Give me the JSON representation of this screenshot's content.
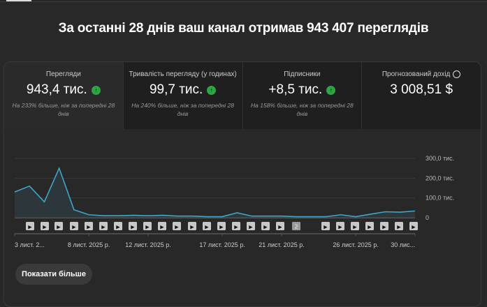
{
  "header": {
    "title": "За останні 28 днів ваш канал отримав 943 407 переглядів"
  },
  "metrics": [
    {
      "label": "Перегляди",
      "value": "943,4 тис.",
      "trend": "up",
      "delta": "На 233% більше, ніж за попередні 28 днів"
    },
    {
      "label": "Тривалість перегляду (у годинах)",
      "value": "99,7 тис.",
      "trend": "up",
      "delta": "На 240% більше, ніж за попередні 28 днів"
    },
    {
      "label": "Підписники",
      "value": "+8,5 тис.",
      "trend": "up",
      "delta": "На 158% більше, ніж за попередні 28 днів"
    },
    {
      "label": "Прогнозований дохід",
      "value": "3 008,51 $",
      "icon": "clock-icon"
    }
  ],
  "chart_data": {
    "type": "area",
    "series": [
      {
        "values": [
          130,
          160,
          80,
          250,
          40,
          15,
          10,
          10,
          12,
          10,
          12,
          8,
          8,
          5,
          5,
          25,
          8,
          8,
          8,
          5,
          5,
          5,
          15,
          5,
          18,
          30,
          28,
          34
        ]
      }
    ],
    "ylim": [
      0,
      300
    ],
    "y_ticks": [
      "0",
      "100,0 тис.",
      "200,0 тис.",
      "300,0 тис."
    ],
    "x_labels": [
      {
        "index": 0,
        "text": "3 лист. 2..."
      },
      {
        "index": 5,
        "text": "8 лист. 2025 р."
      },
      {
        "index": 9,
        "text": "12 лист. 2025 р."
      },
      {
        "index": 14,
        "text": "17 лист. 2025 р."
      },
      {
        "index": 18,
        "text": "21 лист. 2025 р."
      },
      {
        "index": 23,
        "text": "26 лист. 2025 р."
      },
      {
        "index": 27,
        "text": "30 лис..."
      }
    ],
    "video_markers": [
      "▶",
      "▶",
      "▶",
      "▶",
      "▶",
      "▶",
      "▶",
      "▶",
      "▶",
      "▶",
      "▶",
      "▶",
      "▶",
      "▶",
      "▶",
      "▶",
      "▶",
      "▶",
      "2",
      "▶",
      "▶",
      "▶",
      "▶",
      "▶",
      "▶",
      "▶"
    ],
    "grid": true,
    "line_color": "#3ea6c9"
  },
  "show_more": "Показати більше"
}
